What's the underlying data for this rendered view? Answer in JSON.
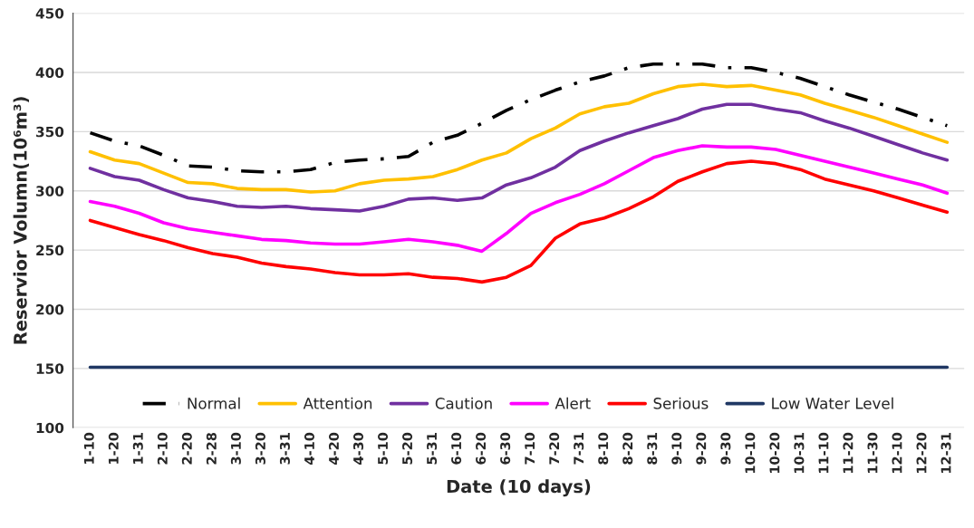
{
  "chart_data": {
    "type": "line",
    "xlabel": "Date (10 days)",
    "ylabel": "Reservior Volumn(10⁶m³)",
    "categories": [
      "1-10",
      "1-20",
      "1-31",
      "2-10",
      "2-20",
      "2-28",
      "3-10",
      "3-20",
      "3-31",
      "4-10",
      "4-20",
      "4-30",
      "5-10",
      "5-20",
      "5-31",
      "6-10",
      "6-20",
      "6-30",
      "7-10",
      "7-20",
      "7-31",
      "8-10",
      "8-20",
      "8-31",
      "9-10",
      "9-20",
      "9-30",
      "10-10",
      "10-20",
      "10-31",
      "11-10",
      "11-20",
      "11-30",
      "12-10",
      "12-20",
      "12-31"
    ],
    "series": [
      {
        "name": "Normal",
        "color": "#000000",
        "line_style": "dashdot",
        "values": [
          349,
          342,
          338,
          330,
          321,
          320,
          317,
          316,
          316,
          318,
          324,
          326,
          327,
          329,
          341,
          347,
          357,
          368,
          377,
          385,
          392,
          397,
          404,
          407,
          407,
          407,
          404,
          404,
          400,
          395,
          388,
          381,
          375,
          369,
          362,
          355
        ]
      },
      {
        "name": "Attention",
        "color": "#ffc000",
        "values": [
          333,
          326,
          323,
          315,
          307,
          306,
          302,
          301,
          301,
          299,
          300,
          306,
          309,
          310,
          312,
          318,
          326,
          332,
          344,
          353,
          365,
          371,
          374,
          382,
          388,
          390,
          388,
          389,
          385,
          381,
          374,
          368,
          362,
          355,
          348,
          341
        ]
      },
      {
        "name": "Caution",
        "color": "#7030a0",
        "values": [
          319,
          312,
          309,
          301,
          294,
          291,
          287,
          286,
          287,
          285,
          284,
          283,
          287,
          293,
          294,
          292,
          294,
          305,
          311,
          320,
          334,
          342,
          349,
          355,
          361,
          369,
          373,
          373,
          369,
          366,
          359,
          353,
          346,
          339,
          332,
          326
        ]
      },
      {
        "name": "Alert",
        "color": "#ff00ff",
        "values": [
          291,
          287,
          281,
          273,
          268,
          265,
          262,
          259,
          258,
          256,
          255,
          255,
          257,
          259,
          257,
          254,
          249,
          264,
          281,
          290,
          297,
          306,
          317,
          328,
          334,
          338,
          337,
          337,
          335,
          330,
          325,
          320,
          315,
          310,
          305,
          298
        ]
      },
      {
        "name": "Serious",
        "color": "#ff0000",
        "values": [
          275,
          269,
          263,
          258,
          252,
          247,
          244,
          239,
          236,
          234,
          231,
          229,
          229,
          230,
          227,
          226,
          223,
          227,
          237,
          260,
          272,
          277,
          285,
          295,
          308,
          316,
          323,
          325,
          323,
          318,
          310,
          305,
          300,
          294,
          288,
          282
        ]
      },
      {
        "name": "Low Water Level",
        "color": "#203864",
        "values": [
          151,
          151,
          151,
          151,
          151,
          151,
          151,
          151,
          151,
          151,
          151,
          151,
          151,
          151,
          151,
          151,
          151,
          151,
          151,
          151,
          151,
          151,
          151,
          151,
          151,
          151,
          151,
          151,
          151,
          151,
          151,
          151,
          151,
          151,
          151,
          151
        ]
      }
    ],
    "ylim": [
      100,
      450
    ],
    "yticks": [
      100,
      150,
      200,
      250,
      300,
      350,
      400,
      450
    ],
    "grid": "y",
    "legend": "bottom",
    "line_style": "solid",
    "marker": "none"
  }
}
